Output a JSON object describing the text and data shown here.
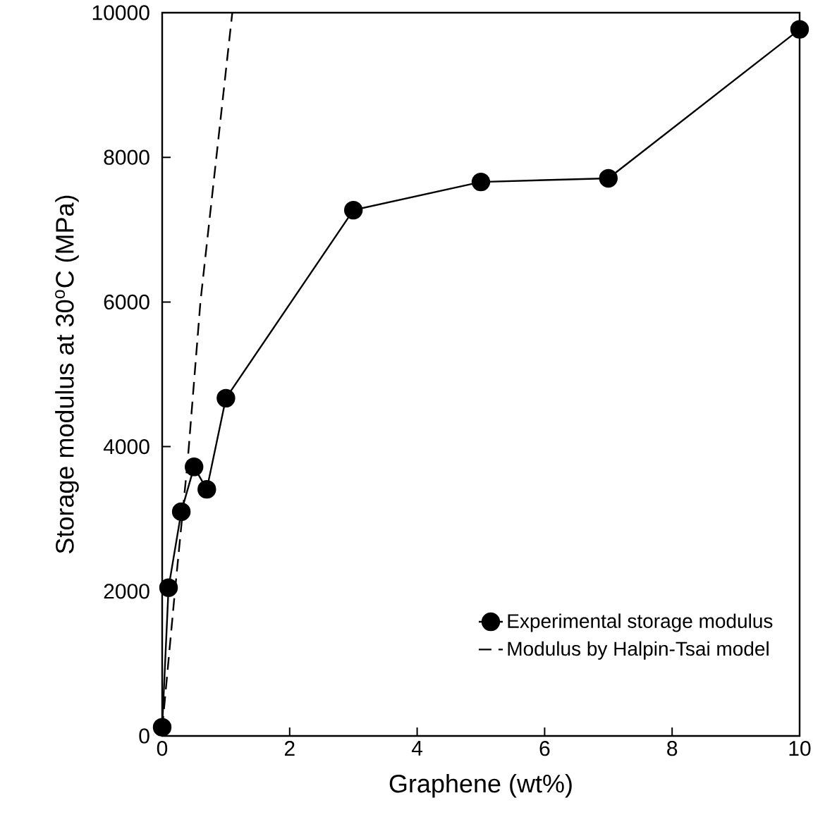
{
  "chart_data": {
    "type": "line",
    "xlabel": "Graphene (wt%)",
    "ylabel": "Storage modulus at 30$^{o}$C (MPa)",
    "xlim": [
      0,
      10
    ],
    "ylim": [
      0,
      10000
    ],
    "xticks": [
      0,
      2,
      4,
      6,
      8,
      10
    ],
    "yticks": [
      0,
      2000,
      4000,
      6000,
      8000,
      10000
    ],
    "grid": false,
    "legend": "bottom right",
    "series": [
      {
        "name": "Experimental storage modulus",
        "color": "#000000",
        "marker": "circle",
        "line_style": "solid",
        "x": [
          0,
          0.1,
          0.3,
          0.5,
          0.7,
          1,
          3,
          5,
          7,
          10
        ],
        "values": [
          120,
          2050,
          3100,
          3720,
          3410,
          4670,
          7270,
          7660,
          7710,
          9770
        ]
      },
      {
        "name": "Modulus by Halpin-Tsai model",
        "color": "#000000",
        "marker": "none",
        "line_style": "dashed",
        "x": [
          0,
          0.2,
          0.4,
          0.6,
          0.85,
          1.1
        ],
        "values": [
          100,
          2000,
          3800,
          6000,
          8000,
          10000
        ]
      }
    ]
  }
}
